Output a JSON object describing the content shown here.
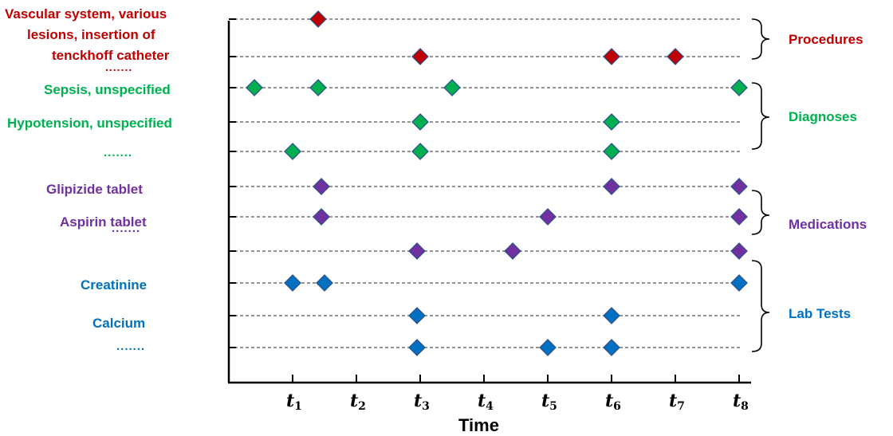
{
  "colors": {
    "procedures": "#c00000",
    "diagnoses": "#00b050",
    "medications": "#7030a0",
    "lab_tests": "#0070c0",
    "red_marker": "#c00000",
    "green_marker": "#00b050",
    "purple_marker": "#7030a0",
    "blue_marker": "#0070c0",
    "marker_outline": "#2f528f",
    "axis": "#000000",
    "guide_line": "#555555"
  },
  "row_labels": {
    "procedure_1_line1": "Vascular system, various",
    "procedure_1_line2": "lesions, insertion of",
    "procedure_1_line3": "tenckhoff catheter",
    "procedure_ellipsis": ".......",
    "diagnosis_1": "Sepsis, unspecified",
    "diagnosis_2": "Hypotension, unspecified",
    "diagnosis_ellipsis": ".......",
    "medication_1": "Glipizide tablet",
    "medication_2": "Aspirin tablet",
    "medication_ellipsis": ".......",
    "lab_1": "Creatinine",
    "lab_2": "Calcium",
    "lab_ellipsis": "......."
  },
  "groups": {
    "procedures": "Procedures",
    "diagnoses": "Diagnoses",
    "medications": "Medications",
    "lab_tests": "Lab Tests"
  },
  "time_axis": {
    "title": "Time",
    "tick_symbol": "t",
    "ticks": [
      "1",
      "2",
      "3",
      "4",
      "5",
      "6",
      "7",
      "8"
    ]
  },
  "timeline_rows": [
    {
      "group": "procedures",
      "events": [
        1.4
      ]
    },
    {
      "group": "procedures",
      "events": [
        3.0,
        6.0,
        7.0
      ]
    },
    {
      "group": "diagnoses",
      "events": [
        0.4,
        1.4,
        3.5,
        8.0
      ]
    },
    {
      "group": "diagnoses",
      "events": [
        3.0,
        6.0
      ]
    },
    {
      "group": "diagnoses",
      "events": [
        1.0,
        3.0,
        6.0
      ]
    },
    {
      "group": "medications",
      "events": [
        1.45,
        6.0,
        8.0
      ]
    },
    {
      "group": "medications",
      "events": [
        1.45,
        5.0,
        8.0
      ]
    },
    {
      "group": "medications",
      "events": [
        2.95,
        4.45,
        8.0
      ]
    },
    {
      "group": "lab_tests",
      "events": [
        1.0,
        1.5,
        8.0
      ]
    },
    {
      "group": "lab_tests",
      "events": [
        2.95,
        6.0
      ]
    },
    {
      "group": "lab_tests",
      "events": [
        2.95,
        5.0,
        6.0
      ]
    }
  ]
}
